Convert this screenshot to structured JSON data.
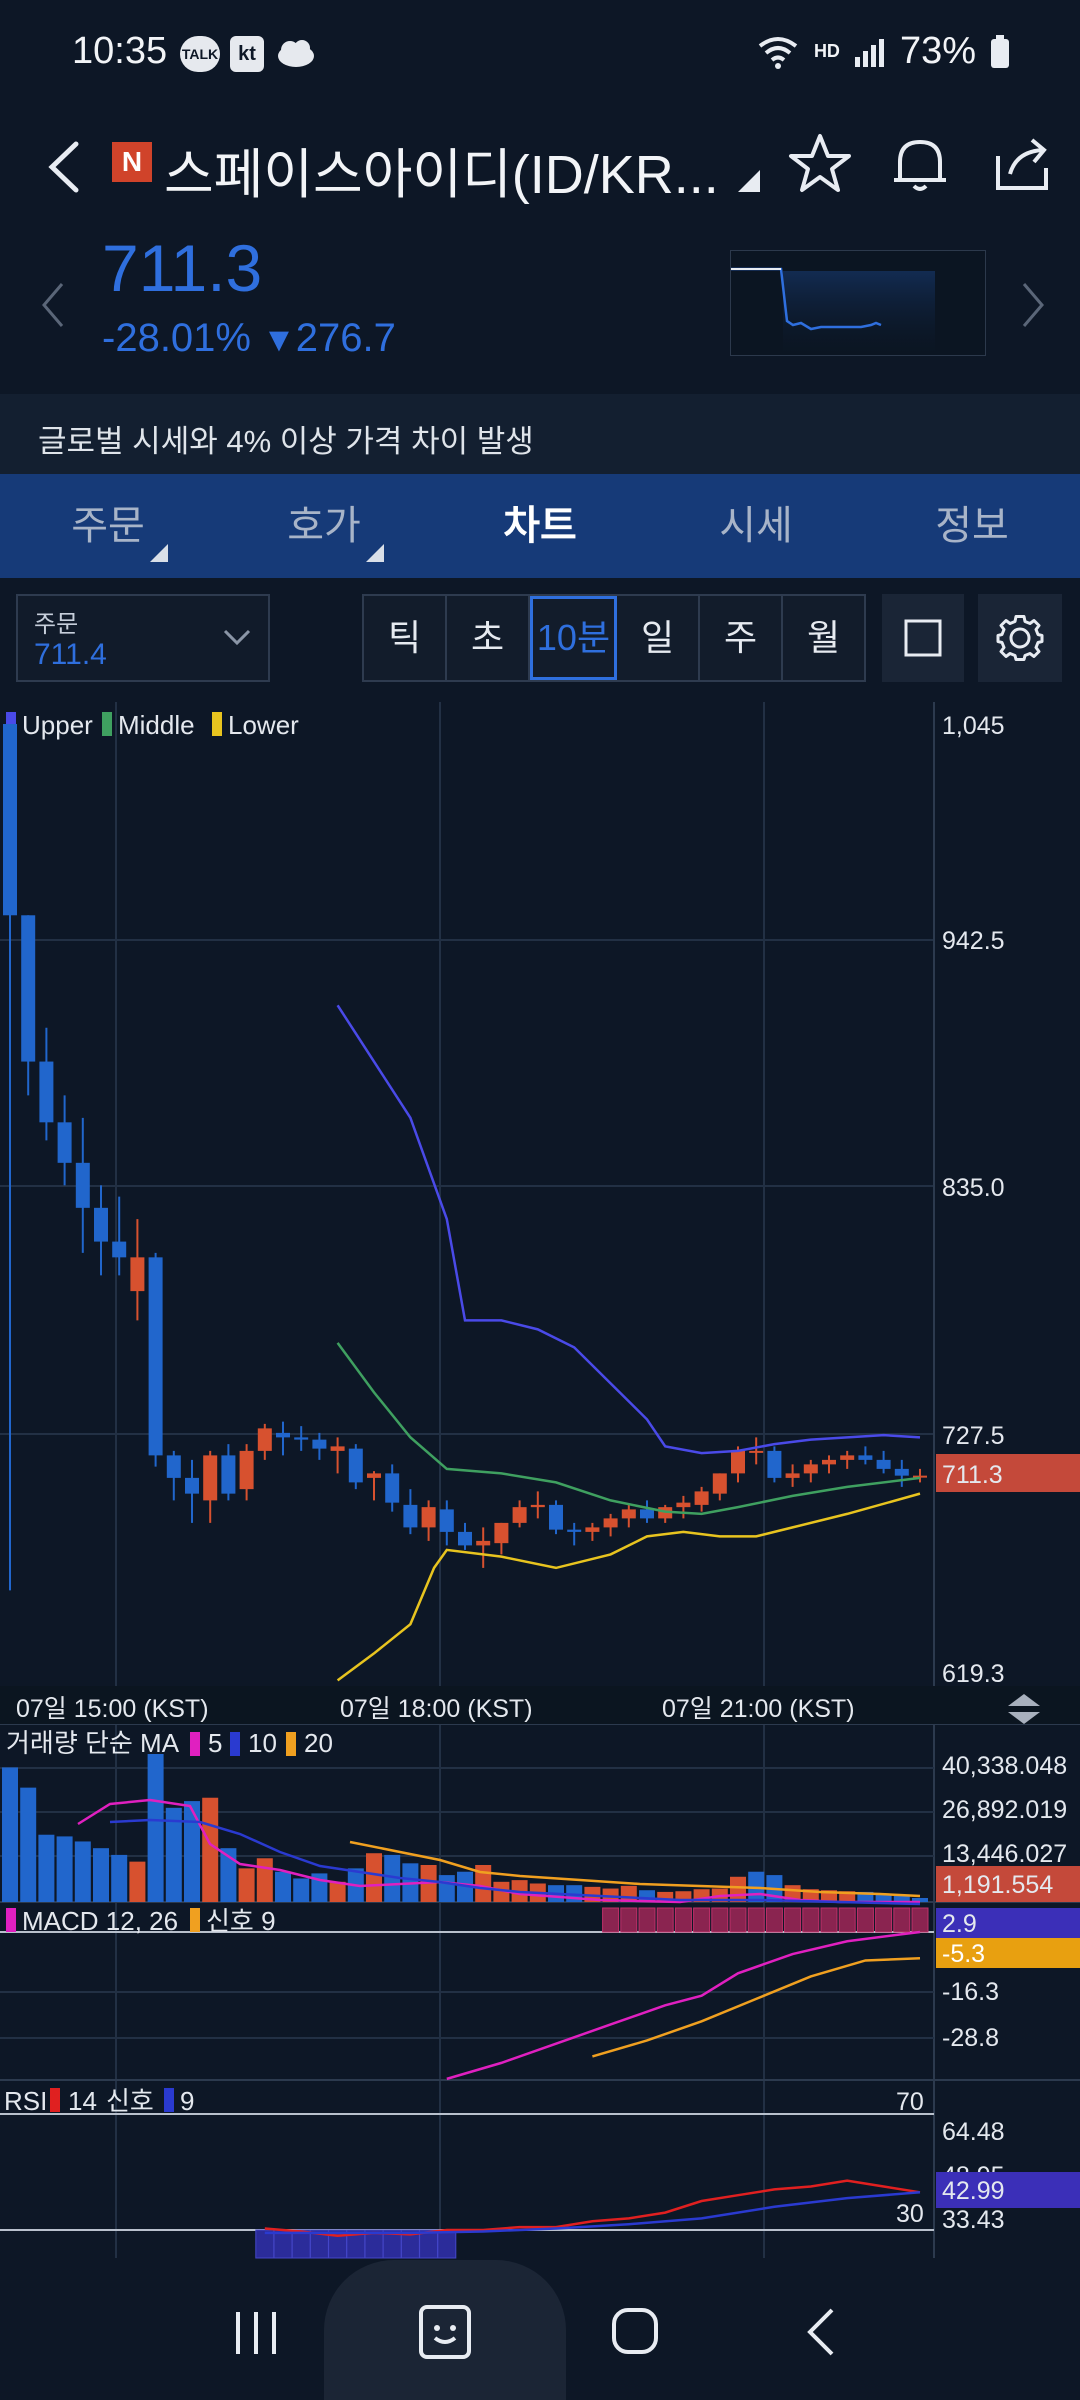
{
  "status_bar": {
    "time": "10:35",
    "icons": [
      "TALK",
      "kt",
      "cloud"
    ],
    "battery": "73%",
    "net_label": "HD"
  },
  "header": {
    "badge": "N",
    "title": "스페이스아이디(ID/KR..."
  },
  "quote": {
    "price": "711.3",
    "change_pct": "-28.01%",
    "change_abs": "276.7",
    "direction": "down"
  },
  "notice": "글로벌 시세와 4% 이상 가격 차이 발생",
  "tabs": [
    {
      "label": "주문"
    },
    {
      "label": "호가"
    },
    {
      "label": "차트"
    },
    {
      "label": "시세"
    },
    {
      "label": "정보"
    }
  ],
  "order_select": {
    "label": "주문",
    "value": "711.4"
  },
  "periods": [
    "틱",
    "초",
    "10분",
    "일",
    "주",
    "월"
  ],
  "active_period": "10분",
  "colors": {
    "up": "#d7512f",
    "down": "#2166cc",
    "bb_upper": "#4a4ae8",
    "bb_middle": "#3fa060",
    "bb_lower": "#e8c41f",
    "accent": "#2f6fde"
  },
  "chart_data": [
    {
      "type": "candlestick",
      "legend": [
        {
          "name": "Upper",
          "color": "#4a4ae8"
        },
        {
          "name": "Middle",
          "color": "#3fa060"
        },
        {
          "name": "Lower",
          "color": "#e8c41f"
        }
      ],
      "y_ticks": [
        "1,045",
        "942.5",
        "835.0",
        "727.5",
        "619.3"
      ],
      "ylim": [
        619.3,
        1045
      ],
      "current_price_label": "711.3",
      "x_labels": [
        "07일 15:00 (KST)",
        "07일 18:00 (KST)",
        "07일 21:00 (KST)"
      ],
      "candles": [
        [
          1045,
          1045,
          660,
          960
        ],
        [
          960,
          960,
          880,
          895
        ],
        [
          895,
          910,
          860,
          868
        ],
        [
          868,
          880,
          840,
          850
        ],
        [
          850,
          870,
          810,
          830
        ],
        [
          830,
          840,
          800,
          815
        ],
        [
          815,
          835,
          800,
          808
        ],
        [
          793,
          825,
          780,
          808
        ],
        [
          808,
          810,
          715,
          720
        ],
        [
          720,
          722,
          700,
          710
        ],
        [
          710,
          718,
          690,
          703
        ],
        [
          700,
          722,
          690,
          720
        ],
        [
          720,
          725,
          700,
          703
        ],
        [
          705,
          725,
          700,
          722
        ],
        [
          722,
          734,
          718,
          732
        ],
        [
          730,
          735,
          720,
          728
        ],
        [
          728,
          733,
          722,
          727
        ],
        [
          727,
          730,
          718,
          723
        ],
        [
          722,
          728,
          712,
          724
        ],
        [
          723,
          725,
          705,
          708
        ],
        [
          710,
          713,
          700,
          712
        ],
        [
          712,
          716,
          695,
          699
        ],
        [
          698,
          705,
          685,
          688
        ],
        [
          688,
          700,
          682,
          697
        ],
        [
          696,
          700,
          680,
          686
        ],
        [
          686,
          690,
          678,
          680
        ],
        [
          680,
          688,
          670,
          682
        ],
        [
          681,
          690,
          676,
          690
        ],
        [
          690,
          700,
          688,
          697
        ],
        [
          697,
          704,
          692,
          698
        ],
        [
          698,
          700,
          685,
          687
        ],
        [
          687,
          690,
          680,
          686
        ],
        [
          686,
          690,
          682,
          688
        ],
        [
          688,
          694,
          684,
          692
        ],
        [
          692,
          698,
          688,
          696
        ],
        [
          696,
          700,
          690,
          692
        ],
        [
          692,
          698,
          690,
          697
        ],
        [
          697,
          702,
          692,
          699
        ],
        [
          698,
          706,
          695,
          704
        ],
        [
          703,
          712,
          700,
          712
        ],
        [
          712,
          724,
          708,
          722
        ],
        [
          722,
          728,
          716,
          722
        ],
        [
          722,
          724,
          708,
          710
        ],
        [
          710,
          716,
          706,
          712
        ],
        [
          712,
          718,
          708,
          716
        ],
        [
          716,
          720,
          712,
          718
        ],
        [
          718,
          722,
          714,
          720
        ],
        [
          720,
          724,
          716,
          718
        ],
        [
          718,
          722,
          712,
          714
        ],
        [
          714,
          718,
          706,
          711
        ],
        [
          711,
          714,
          708,
          711
        ]
      ],
      "bb_upper": [
        [
          18,
          920
        ],
        [
          22,
          870
        ],
        [
          24,
          825
        ],
        [
          25,
          780
        ],
        [
          27,
          780
        ],
        [
          29,
          776
        ],
        [
          31,
          768
        ],
        [
          33,
          752
        ],
        [
          35,
          736
        ],
        [
          36,
          724
        ],
        [
          38,
          721
        ],
        [
          40,
          722
        ],
        [
          42,
          725
        ],
        [
          44,
          727
        ],
        [
          46,
          728
        ],
        [
          48,
          729
        ],
        [
          50,
          728
        ]
      ],
      "bb_middle": [
        [
          18,
          770
        ],
        [
          20,
          748
        ],
        [
          22,
          728
        ],
        [
          24,
          714
        ],
        [
          27,
          712
        ],
        [
          30,
          708
        ],
        [
          33,
          700
        ],
        [
          36,
          695
        ],
        [
          38,
          694
        ],
        [
          40,
          697
        ],
        [
          43,
          702
        ],
        [
          46,
          706
        ],
        [
          50,
          710
        ]
      ],
      "bb_lower": [
        [
          18,
          620
        ],
        [
          20,
          632
        ],
        [
          22,
          645
        ],
        [
          23.3,
          670
        ],
        [
          24,
          678
        ],
        [
          27,
          675
        ],
        [
          30,
          670
        ],
        [
          33,
          676
        ],
        [
          35,
          684
        ],
        [
          37,
          686
        ],
        [
          39,
          684
        ],
        [
          41,
          684
        ],
        [
          43,
          688
        ],
        [
          46,
          694
        ],
        [
          50,
          703
        ]
      ]
    },
    {
      "type": "bar",
      "title": "거래량 단순 MA",
      "ma_periods": [
        "5",
        "10",
        "20"
      ],
      "ma_colors": [
        "#e020c0",
        "#2a3ad0",
        "#f0a020"
      ],
      "y_ticks": [
        "40,338.048",
        "26,892.019",
        "13,446.027"
      ],
      "current_label": "1,191.554",
      "volumes": [
        40000,
        34000,
        20000,
        19500,
        18000,
        16000,
        14000,
        12000,
        44000,
        28000,
        30000,
        31000,
        16000,
        10000,
        13000,
        9000,
        7000,
        8500,
        6000,
        10000,
        14500,
        14000,
        11500,
        11000,
        8000,
        9000,
        11000,
        6000,
        6500,
        5500,
        5000,
        5000,
        4500,
        4000,
        4800,
        3500,
        3000,
        3200,
        3800,
        4000,
        7500,
        9000,
        8000,
        5000,
        3800,
        3500,
        3200,
        3000,
        2500,
        1800,
        1191.554
      ],
      "vol_up": [
        false,
        false,
        false,
        false,
        false,
        false,
        false,
        true,
        false,
        false,
        false,
        true,
        false,
        true,
        true,
        false,
        false,
        false,
        true,
        false,
        true,
        false,
        false,
        true,
        false,
        false,
        true,
        true,
        true,
        true,
        false,
        false,
        true,
        true,
        true,
        false,
        true,
        true,
        true,
        true,
        true,
        false,
        false,
        true,
        true,
        true,
        true,
        false,
        false,
        false,
        false
      ]
    },
    {
      "type": "line",
      "title": "MACD 12, 26",
      "signal_label": "신호 9",
      "legend_colors": [
        "#e020c0",
        "#f0a020"
      ],
      "y_ticks": [
        "-16.3",
        "-28.8"
      ],
      "current_labels": [
        "2.9",
        "-5.3"
      ],
      "macd": [
        [
          24,
          -43
        ],
        [
          27,
          -38
        ],
        [
          30,
          -32
        ],
        [
          33,
          -26
        ],
        [
          36,
          -20
        ],
        [
          38,
          -17
        ],
        [
          40,
          -10
        ],
        [
          43,
          -4
        ],
        [
          46,
          0
        ],
        [
          49,
          2.2
        ],
        [
          50,
          2.9
        ]
      ],
      "signal": [
        [
          32,
          -36
        ],
        [
          35,
          -31
        ],
        [
          38,
          -25
        ],
        [
          41,
          -18
        ],
        [
          44,
          -11
        ],
        [
          47,
          -6
        ],
        [
          50,
          -5.3
        ]
      ]
    },
    {
      "type": "line",
      "title": "RSI",
      "period": "14",
      "signal_label": "신호",
      "signal_period": "9",
      "legend_colors": [
        "#e02020",
        "#2a3ad0"
      ],
      "y_ticks": [
        "64.48",
        "48.95",
        "33.43"
      ],
      "levels": [
        "70",
        "30"
      ],
      "current_label": "42.99",
      "rsi": [
        [
          14,
          30.5
        ],
        [
          16,
          29.5
        ],
        [
          18,
          28
        ],
        [
          20,
          29
        ],
        [
          22,
          28.5
        ],
        [
          24,
          30
        ],
        [
          26,
          30
        ],
        [
          28,
          31
        ],
        [
          30,
          31
        ],
        [
          32,
          33
        ],
        [
          34,
          34
        ],
        [
          36,
          36
        ],
        [
          38,
          40
        ],
        [
          40,
          42
        ],
        [
          42,
          44
        ],
        [
          44,
          45
        ],
        [
          46,
          47
        ],
        [
          48,
          45
        ],
        [
          50,
          43
        ]
      ],
      "rsi_signal": [
        [
          14,
          29
        ],
        [
          18,
          29
        ],
        [
          22,
          29
        ],
        [
          26,
          29.5
        ],
        [
          30,
          30.5
        ],
        [
          34,
          32
        ],
        [
          38,
          34
        ],
        [
          42,
          38
        ],
        [
          46,
          41
        ],
        [
          50,
          43
        ]
      ]
    }
  ],
  "system_nav": [
    "recent-apps",
    "assistant",
    "home",
    "back"
  ]
}
